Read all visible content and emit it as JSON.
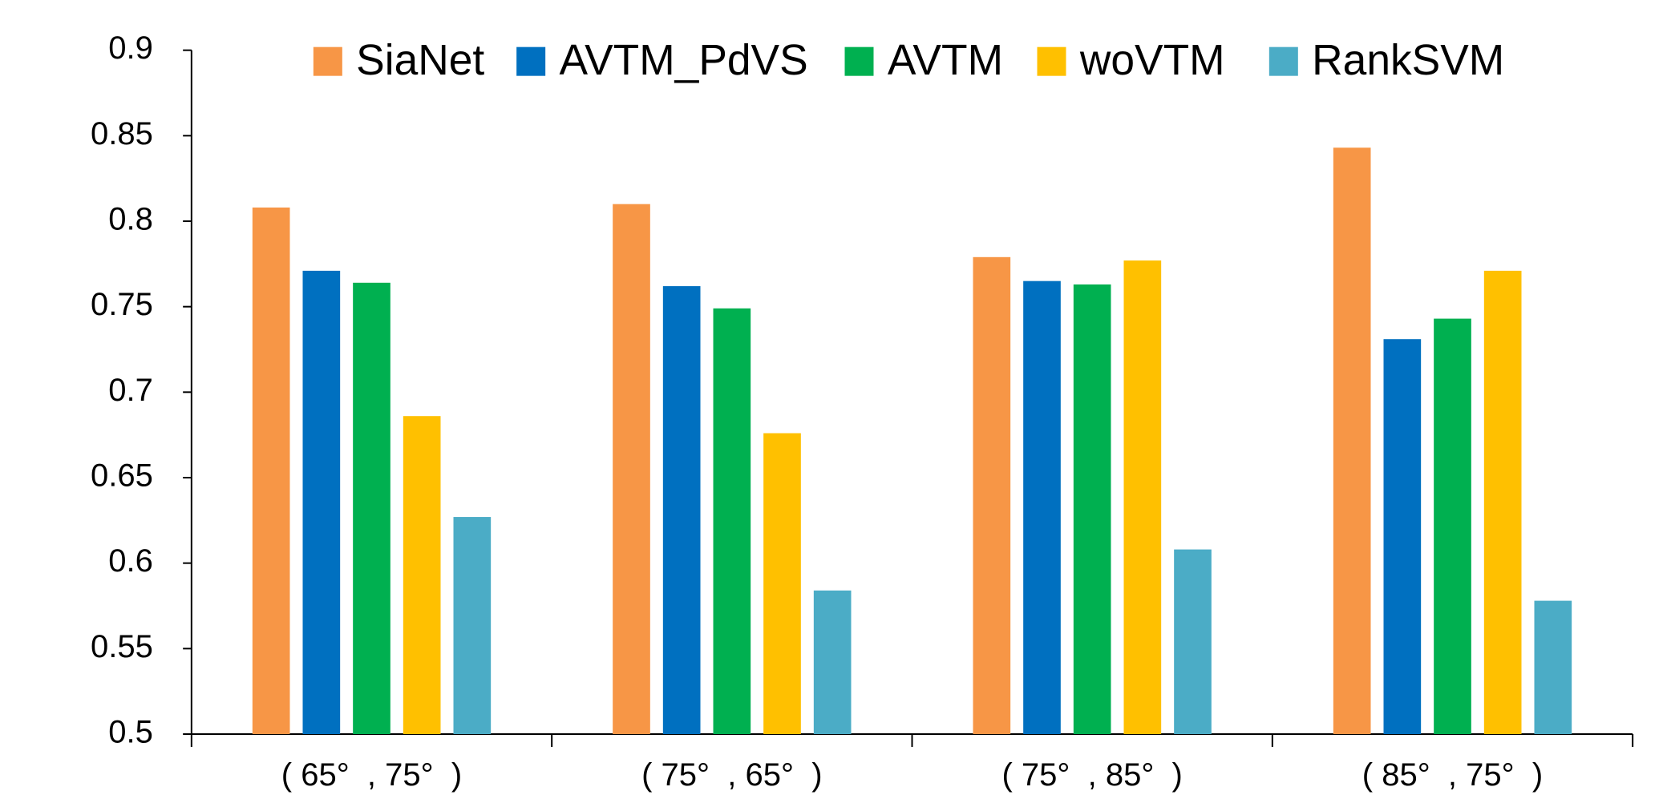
{
  "chart_data": {
    "type": "bar",
    "categories": [
      "( 65°  , 75°  )",
      "( 75°  , 65°  )",
      "( 75°  , 85°  )",
      "( 85°  , 75°  )"
    ],
    "series": [
      {
        "name": "SiaNet",
        "color": "#f79646",
        "values": [
          0.808,
          0.81,
          0.779,
          0.843
        ]
      },
      {
        "name": "AVTM_PdVS",
        "color": "#0070c0",
        "values": [
          0.771,
          0.762,
          0.765,
          0.731
        ]
      },
      {
        "name": "AVTM",
        "color": "#00b050",
        "values": [
          0.764,
          0.749,
          0.763,
          0.743
        ]
      },
      {
        "name": "woVTM",
        "color": "#ffc000",
        "values": [
          0.686,
          0.676,
          0.777,
          0.771
        ]
      },
      {
        "name": "RankSVM",
        "color": "#4bacc6",
        "values": [
          0.627,
          0.584,
          0.608,
          0.578
        ]
      }
    ],
    "ylim": [
      0.5,
      0.9
    ],
    "yticks": [
      0.5,
      0.55,
      0.6,
      0.65,
      0.7,
      0.75,
      0.8,
      0.85,
      0.9
    ],
    "legend": "top"
  }
}
